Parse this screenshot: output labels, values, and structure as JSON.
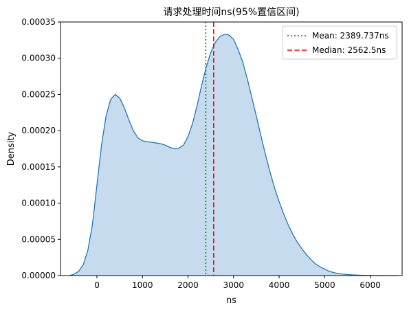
{
  "chart_data": {
    "type": "area",
    "title": "请求处理时间ns(95%置信区间)",
    "xlabel": "ns",
    "ylabel": "Density",
    "xlim": [
      -800,
      6700
    ],
    "ylim": [
      0,
      0.00035
    ],
    "xticks": [
      0,
      1000,
      2000,
      3000,
      4000,
      5000,
      6000
    ],
    "xtick_labels": [
      "0",
      "1000",
      "2000",
      "3000",
      "4000",
      "5000",
      "6000"
    ],
    "yticks": [
      0,
      5e-05,
      0.0001,
      0.00015,
      0.0002,
      0.00025,
      0.0003,
      0.00035
    ],
    "ytick_labels": [
      "0.00000",
      "0.00005",
      "0.00010",
      "0.00015",
      "0.00020",
      "0.00025",
      "0.00030",
      "0.00035"
    ],
    "grid": false,
    "legend_position": "top-right",
    "series": [
      {
        "name": "",
        "color": "#1f77b4",
        "fill": "#c6dbee",
        "x": [
          -600,
          -500,
          -400,
          -300,
          -200,
          -100,
          0,
          100,
          200,
          300,
          400,
          500,
          600,
          700,
          800,
          900,
          1000,
          1100,
          1200,
          1300,
          1400,
          1500,
          1600,
          1700,
          1800,
          1900,
          2000,
          2100,
          2200,
          2300,
          2400,
          2500,
          2600,
          2700,
          2800,
          2900,
          3000,
          3100,
          3200,
          3300,
          3400,
          3500,
          3600,
          3700,
          3800,
          3900,
          4000,
          4100,
          4200,
          4300,
          4400,
          4500,
          4600,
          4700,
          4800,
          4900,
          5000,
          5100,
          5200,
          5300,
          5400,
          5500,
          5600,
          5700,
          5800,
          5900,
          6000,
          6100,
          6200,
          6300,
          6400,
          6500,
          6600
        ],
        "y": [
          0,
          2e-06,
          6e-06,
          1.5e-05,
          3.5e-05,
          7e-05,
          0.000125,
          0.00018,
          0.00022,
          0.000243,
          0.00025,
          0.000245,
          0.000232,
          0.000215,
          0.0002,
          0.00019,
          0.000186,
          0.000185,
          0.000184,
          0.000183,
          0.000182,
          0.00018,
          0.000177,
          0.000175,
          0.000176,
          0.00018,
          0.000192,
          0.00021,
          0.000235,
          0.000263,
          0.000288,
          0.000308,
          0.000322,
          0.00033,
          0.000333,
          0.000332,
          0.000326,
          0.000312,
          0.000295,
          0.000272,
          0.000246,
          0.00022,
          0.000193,
          0.000167,
          0.000143,
          0.000121,
          0.000102,
          8.5e-05,
          7e-05,
          5.7e-05,
          4.6e-05,
          3.7e-05,
          2.9e-05,
          2.2e-05,
          1.6e-05,
          1.2e-05,
          9e-06,
          6e-06,
          4e-06,
          3e-06,
          2e-06,
          1.5e-06,
          1e-06,
          7e-07,
          5e-07,
          3e-07,
          2e-07,
          1e-07,
          5e-08,
          2e-08,
          1e-08,
          5e-09,
          0
        ]
      }
    ],
    "vlines": [
      {
        "name": "Mean: 2389.737ns",
        "x": 2389.737,
        "color": "#008000",
        "style": "dotted"
      },
      {
        "name": "Median: 2562.5ns",
        "x": 2562.5,
        "color": "#ff0000",
        "style": "dashed"
      }
    ]
  }
}
